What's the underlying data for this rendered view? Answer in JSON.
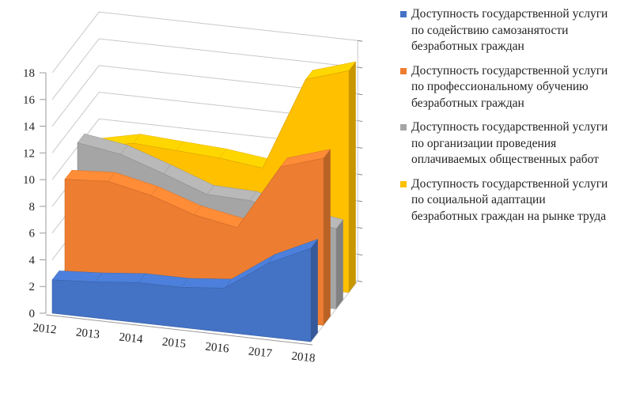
{
  "chart_data": {
    "type": "area",
    "three_d": true,
    "categories": [
      "2012",
      "2013",
      "2014",
      "2015",
      "2016",
      "2017",
      "2018"
    ],
    "ylim": [
      0,
      18
    ],
    "yticks": [
      "0",
      "2",
      "4",
      "6",
      "8",
      "10",
      "12",
      "14",
      "16",
      "18"
    ],
    "grid": true,
    "legend_position": "right",
    "series": [
      {
        "name": "Доступность государственной услуги по содействию самозанятости безработных граждан",
        "color": "#4472C4",
        "values": [
          2.5,
          2.7,
          3.0,
          3.0,
          3.3,
          5.5,
          7.0
        ]
      },
      {
        "name": "Доступность государственной услуги по профессиональному обучению безработных граждан",
        "color": "#ED7D31",
        "values": [
          8.8,
          9.0,
          8.3,
          7.2,
          6.6,
          11.5,
          12.5
        ]
      },
      {
        "name": "Доступность государственной услуги по организации проведения оплачиваемых общественных работ",
        "color": "#A5A5A5",
        "values": [
          10.3,
          9.8,
          8.7,
          7.5,
          7.4,
          6.5,
          6.0
        ]
      },
      {
        "name": "Доступность государственной услуги по социальной адаптации безработных граждан на рынке труда",
        "color": "#FFC000",
        "values": [
          8.7,
          9.4,
          9.2,
          9.0,
          8.6,
          15.6,
          16.6
        ]
      }
    ]
  }
}
